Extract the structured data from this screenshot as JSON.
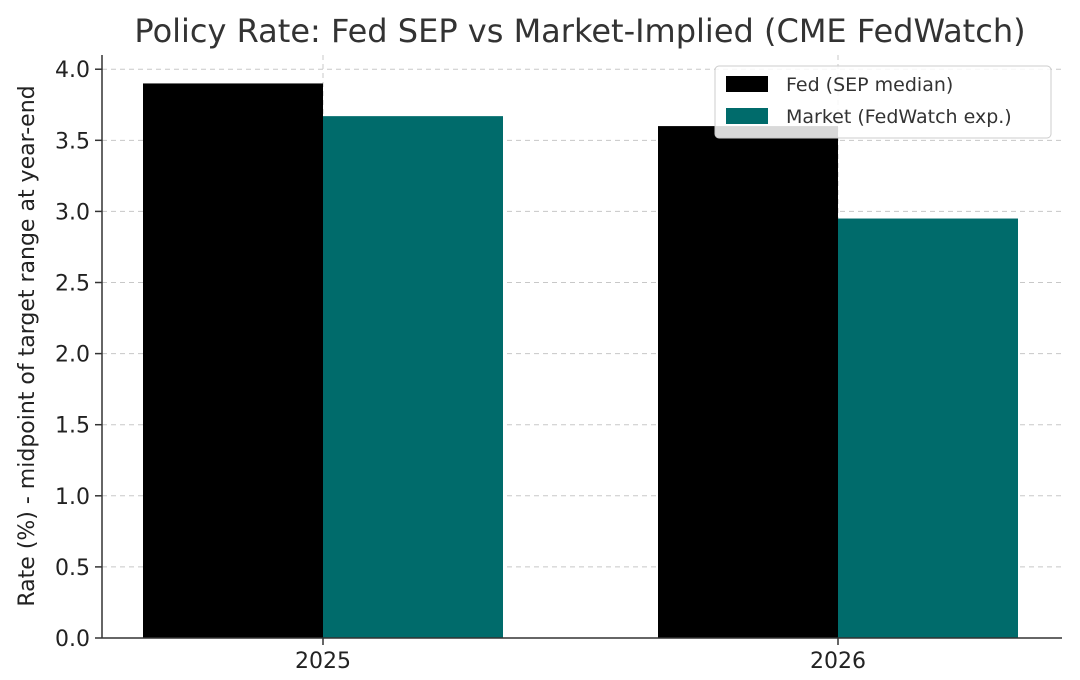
{
  "chart_data": {
    "type": "bar",
    "title": "Policy Rate: Fed SEP vs Market-Implied (CME FedWatch)",
    "xlabel": "",
    "ylabel": "Rate (%) - midpoint of target range at year-end",
    "categories": [
      "2025",
      "2026"
    ],
    "series": [
      {
        "name": "Fed (SEP median)",
        "values": [
          3.9,
          3.6
        ],
        "color": "#000000"
      },
      {
        "name": "Market (FedWatch exp.)",
        "values": [
          3.67,
          2.95
        ],
        "color": "#006b6b"
      }
    ],
    "ylim": [
      0,
      4.1
    ],
    "yticks": [
      "0.0",
      "0.5",
      "1.0",
      "1.5",
      "2.0",
      "2.5",
      "3.0",
      "3.5",
      "4.0"
    ],
    "grid": true,
    "legend_position": "top-right"
  }
}
